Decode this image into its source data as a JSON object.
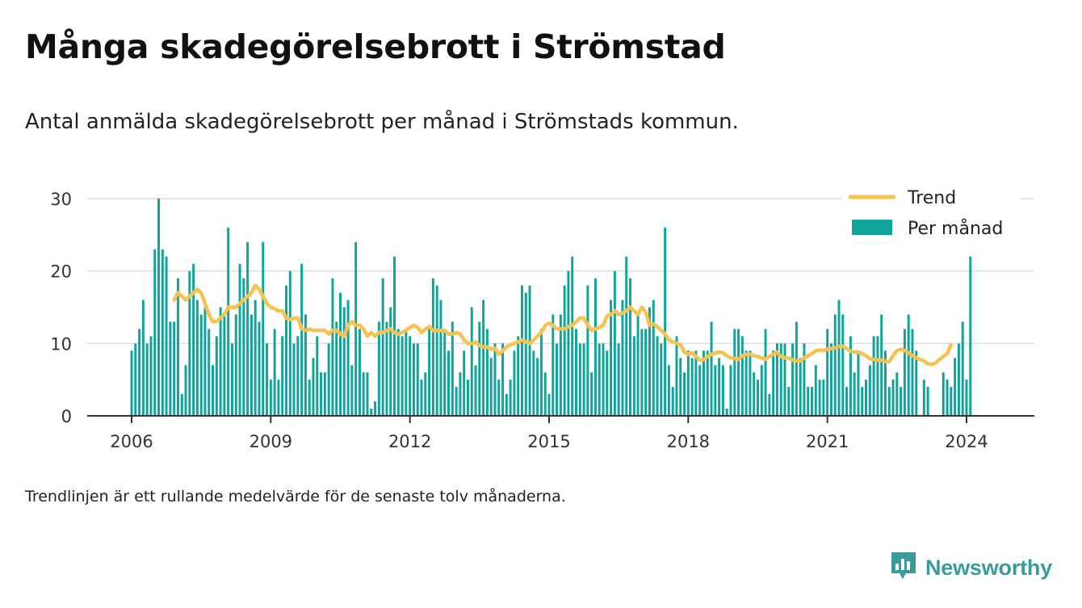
{
  "title": "Många skadegörelsebrott i Strömstad",
  "subtitle": "Antal anmälda skadegörelsebrott per månad i Strömstads kommun.",
  "note": "Trendlinjen är ett rullande medelvärde för de senaste tolv månaderna.",
  "brand": {
    "name": "Newsworthy",
    "icon": "newsworthy-logo-icon"
  },
  "colors": {
    "bars": "#0fa49b",
    "trend": "#f7c24f",
    "grid": "#dddddd",
    "axis": "#333333"
  },
  "chart_data": {
    "type": "bar",
    "x_start": "2006-01",
    "x_ticks": [
      "2006",
      "2009",
      "2012",
      "2015",
      "2018",
      "2021",
      "2024"
    ],
    "y_ticks": [
      "0",
      "10",
      "20",
      "30"
    ],
    "ylim": [
      0,
      30
    ],
    "grid": true,
    "legend_position": "top-right",
    "series": [
      {
        "name": "Per månad",
        "type": "bar",
        "values": [
          9,
          10,
          12,
          16,
          10,
          11,
          23,
          30,
          23,
          22,
          13,
          13,
          19,
          3,
          7,
          20,
          21,
          16,
          14,
          15,
          12,
          7,
          11,
          15,
          14,
          26,
          10,
          14,
          21,
          19,
          24,
          14,
          16,
          13,
          24,
          10,
          5,
          12,
          5,
          11,
          18,
          20,
          10,
          11,
          21,
          14,
          5,
          8,
          11,
          6,
          6,
          10,
          19,
          13,
          17,
          15,
          16,
          7,
          24,
          12,
          6,
          6,
          1,
          2,
          13,
          19,
          13,
          15,
          22,
          12,
          11,
          12,
          11,
          10,
          10,
          5,
          6,
          12,
          19,
          18,
          16,
          12,
          9,
          13,
          4,
          6,
          9,
          5,
          15,
          7,
          13,
          16,
          12,
          8,
          10,
          5,
          10,
          3,
          5,
          9,
          11,
          18,
          17,
          18,
          9,
          8,
          12,
          6,
          3,
          14,
          10,
          14,
          18,
          20,
          22,
          12,
          10,
          10,
          18,
          6,
          19,
          10,
          10,
          9,
          16,
          20,
          10,
          16,
          22,
          19,
          11,
          14,
          12,
          12,
          15,
          16,
          11,
          10,
          26,
          7,
          4,
          11,
          8,
          6,
          9,
          8,
          9,
          7,
          9,
          9,
          13,
          7,
          8,
          7,
          1,
          7,
          12,
          12,
          11,
          9,
          9,
          6,
          5,
          7,
          12,
          3,
          9,
          10,
          10,
          10,
          4,
          10,
          13,
          8,
          10,
          4,
          4,
          7,
          5,
          5,
          12,
          10,
          14,
          16,
          14,
          4,
          11,
          6,
          9,
          4,
          5,
          7,
          11,
          11,
          14,
          9,
          4,
          5,
          6,
          4,
          12,
          14,
          12,
          9,
          0,
          5,
          4,
          0,
          0,
          0,
          6,
          5,
          4,
          8,
          10,
          13,
          5,
          22
        ]
      },
      {
        "name": "Trend",
        "type": "line",
        "start": "2006-12",
        "values": [
          16,
          17,
          16.5,
          16,
          16.5,
          17,
          17.5,
          17,
          15.5,
          14,
          13,
          13,
          13.5,
          14,
          15,
          15,
          15,
          15.5,
          16,
          16.5,
          17,
          18,
          17.5,
          16.5,
          15.5,
          15,
          14.8,
          14.5,
          14.5,
          13.5,
          13.3,
          13.5,
          13.5,
          12,
          11.8,
          12,
          11.8,
          11.8,
          11.8,
          11.8,
          11.3,
          11.8,
          11.8,
          11.3,
          11,
          12.5,
          13,
          12.5,
          12.5,
          12,
          11,
          11.5,
          11,
          11.5,
          11.5,
          11.8,
          12,
          11.5,
          11.3,
          11.5,
          11.8,
          12.2,
          12.5,
          12.2,
          11.5,
          12,
          12.3,
          11.8,
          11.8,
          11.8,
          11.8,
          11.3,
          11.3,
          11.5,
          11.3,
          10.5,
          10,
          10,
          10.2,
          9.7,
          9.5,
          9.5,
          9.2,
          9.3,
          8.5,
          9,
          9.5,
          9.8,
          10,
          10.2,
          10.5,
          10.2,
          10,
          10.5,
          11,
          11.5,
          12.5,
          12.8,
          12.5,
          12,
          12,
          12,
          12.3,
          12.5,
          13,
          13.5,
          13.5,
          12.5,
          11.8,
          12,
          12.2,
          12.5,
          13.8,
          14,
          14.5,
          14,
          14.2,
          14.5,
          15,
          14.5,
          14,
          15,
          14.3,
          12.5,
          12.7,
          12.3,
          11.8,
          11.3,
          10.5,
          10.2,
          10,
          9.8,
          8.8,
          8.5,
          8.7,
          8.2,
          7.7,
          7.8,
          8.2,
          8.5,
          8.7,
          8.8,
          8.7,
          8.3,
          8,
          7.9,
          7.8,
          8.3,
          8.5,
          8.5,
          8.3,
          8.2,
          8,
          7.8,
          8.2,
          8.5,
          8.8,
          8.2,
          8,
          8,
          7.7,
          7.6,
          7.6,
          8,
          8.3,
          8.6,
          9,
          9.1,
          9,
          9.2,
          9.3,
          9.4,
          9.6,
          9.6,
          9.3,
          8.9,
          8.8,
          8.8,
          8.6,
          8.3,
          7.9,
          7.8,
          7.7,
          7.7,
          7.5,
          7.5,
          8.3,
          9,
          9.2,
          9,
          8.7,
          8.3,
          8,
          7.8,
          7.6,
          7.2,
          7.1,
          7.3,
          7.8,
          8.2,
          8.6,
          9.8
        ]
      }
    ]
  }
}
